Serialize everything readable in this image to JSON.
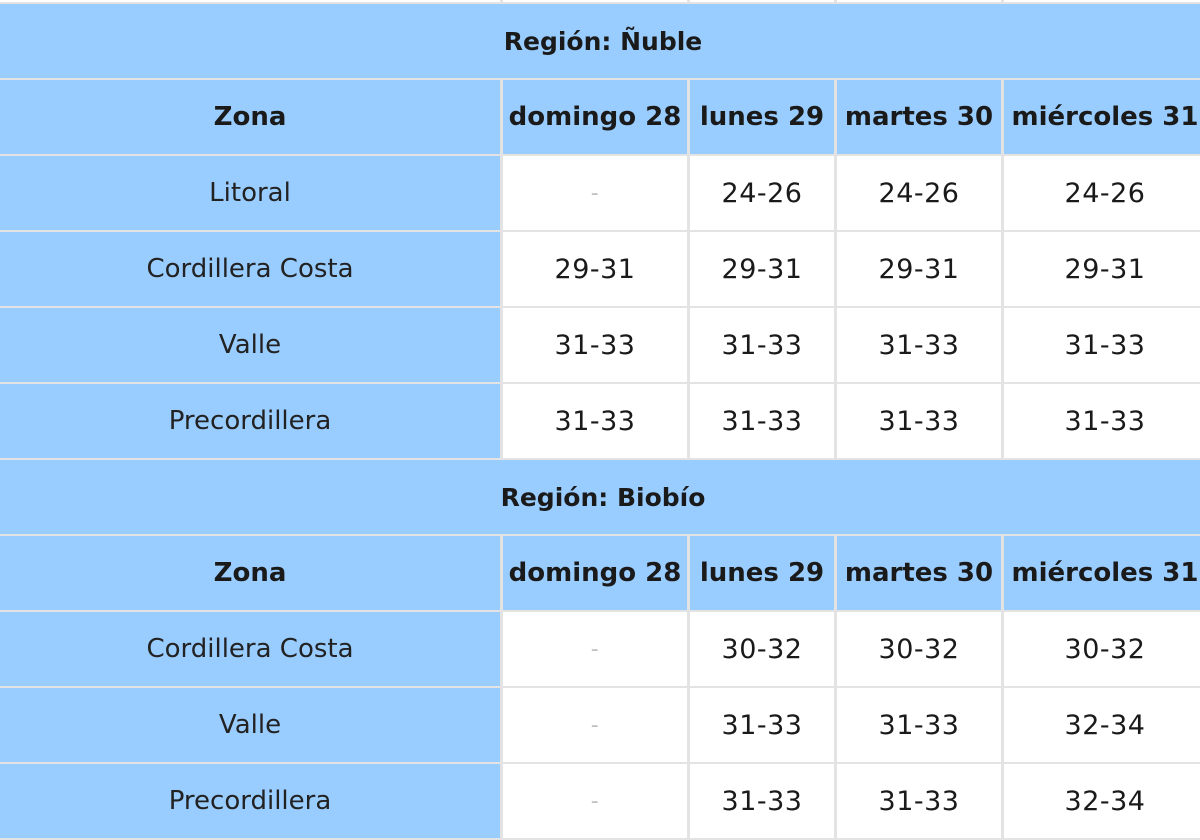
{
  "tables": [
    {
      "region_title": "Región: Ñuble",
      "headers": [
        "Zona",
        "domingo 28",
        "lunes 29",
        "martes 30",
        "miércoles 31"
      ],
      "rows": [
        {
          "zona": "Litoral",
          "values": [
            "-",
            "24-26",
            "24-26",
            "24-26"
          ]
        },
        {
          "zona": "Cordillera Costa",
          "values": [
            "29-31",
            "29-31",
            "29-31",
            "29-31"
          ]
        },
        {
          "zona": "Valle",
          "values": [
            "31-33",
            "31-33",
            "31-33",
            "31-33"
          ]
        },
        {
          "zona": "Precordillera",
          "values": [
            "31-33",
            "31-33",
            "31-33",
            "31-33"
          ]
        }
      ]
    },
    {
      "region_title": "Región: Biobío",
      "headers": [
        "Zona",
        "domingo 28",
        "lunes 29",
        "martes 30",
        "miércoles 31"
      ],
      "rows": [
        {
          "zona": "Cordillera Costa",
          "values": [
            "-",
            "30-32",
            "30-32",
            "30-32"
          ]
        },
        {
          "zona": "Valle",
          "values": [
            "-",
            "31-33",
            "31-33",
            "32-34"
          ]
        },
        {
          "zona": "Precordillera",
          "values": [
            "-",
            "31-33",
            "31-33",
            "32-34"
          ]
        }
      ]
    }
  ],
  "colors": {
    "header_bg": "#99ccff",
    "cell_bg": "#ffffff",
    "border": "#e3e3e3",
    "text": "#1a1a1a",
    "dash": "#c0c0c0"
  }
}
